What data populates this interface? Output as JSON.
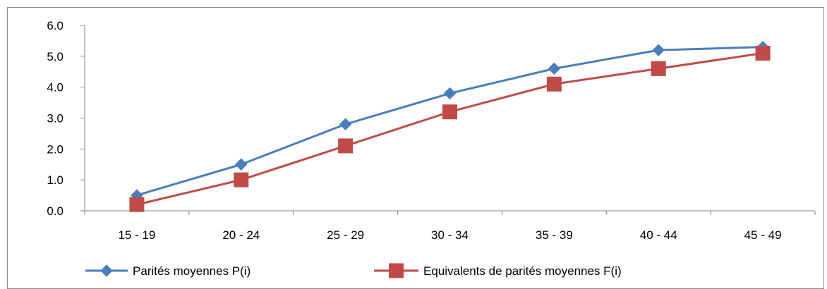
{
  "chart_data": {
    "type": "line",
    "categories": [
      "15 - 19",
      "20 - 24",
      "25 - 29",
      "30 - 34",
      "35 - 39",
      "40 - 44",
      "45 - 49"
    ],
    "series": [
      {
        "name": "Parités moyennes P(i)",
        "values": [
          0.5,
          1.5,
          2.8,
          3.8,
          4.6,
          5.2,
          5.3
        ],
        "color": "#4a7ebb",
        "marker": "diamond"
      },
      {
        "name": "Equivalents de parités moyennes F(i)",
        "values": [
          0.2,
          1.0,
          2.1,
          3.2,
          4.1,
          4.6,
          5.1
        ],
        "color": "#be4b48",
        "marker": "square"
      }
    ],
    "yticks": [
      "0.0",
      "1.0",
      "2.0",
      "3.0",
      "4.0",
      "5.0",
      "6.0"
    ],
    "ylim": [
      0,
      6
    ],
    "grid": false,
    "legend_position": "bottom"
  }
}
